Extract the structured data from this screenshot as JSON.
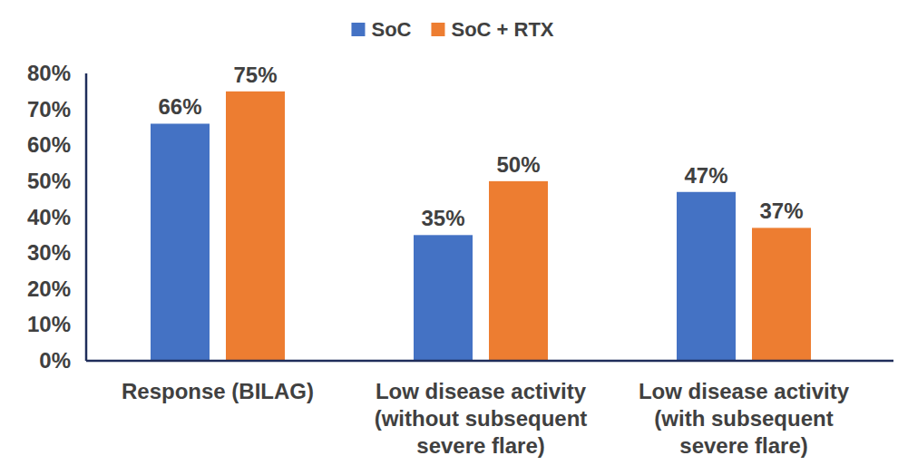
{
  "chart_data": {
    "type": "bar",
    "categories": [
      "Response (BILAG)",
      "Low disease activity (without subsequent severe flare)",
      "Low disease activity (with subsequent severe flare)"
    ],
    "series": [
      {
        "name": "SoC",
        "color": "#4472c4",
        "values": [
          66,
          35,
          47
        ],
        "value_labels": [
          "66%",
          "35%",
          "47%"
        ]
      },
      {
        "name": "SoC + RTX",
        "color": "#ed7d31",
        "values": [
          75,
          50,
          37
        ],
        "value_labels": [
          "75%",
          "50%",
          "37%"
        ]
      }
    ],
    "ylim": [
      0,
      80
    ],
    "yticks": [
      {
        "value": 0,
        "label": "0%"
      },
      {
        "value": 10,
        "label": "10%"
      },
      {
        "value": 20,
        "label": "20%"
      },
      {
        "value": 30,
        "label": "30%"
      },
      {
        "value": 40,
        "label": "40%"
      },
      {
        "value": 50,
        "label": "50%"
      },
      {
        "value": 60,
        "label": "60%"
      },
      {
        "value": 70,
        "label": "70%"
      },
      {
        "value": 80,
        "label": "80%"
      }
    ],
    "grid": false,
    "legend": "top",
    "data_labels": true
  }
}
